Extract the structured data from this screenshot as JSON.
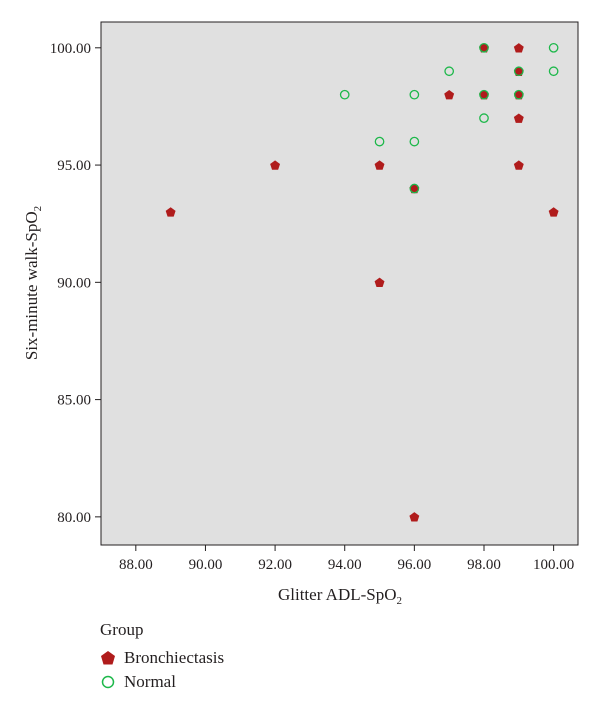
{
  "chart_data": {
    "type": "scatter",
    "xlabel": "Glitter ADL-SpO",
    "xlabel_sub": "2",
    "ylabel": "Six-minute walk-SpO",
    "ylabel_sub": "2",
    "xlim": [
      87.0,
      100.7
    ],
    "ylim": [
      78.8,
      101.1
    ],
    "x_ticks": [
      "88.00",
      "90.00",
      "92.00",
      "94.00",
      "96.00",
      "98.00",
      "100.00"
    ],
    "y_ticks": [
      "80.00",
      "85.00",
      "90.00",
      "95.00",
      "100.00"
    ],
    "grid": false,
    "legend": {
      "title": "Group",
      "position": "bottom-left"
    },
    "colors": {
      "plot_bg": "#e0e0e0",
      "Bronchiectasis": "#b01c1c",
      "Normal": "#1db84a"
    },
    "series": [
      {
        "name": "Bronchiectasis",
        "marker": "pentagon",
        "points": [
          [
            89,
            93
          ],
          [
            92,
            95
          ],
          [
            95,
            95
          ],
          [
            95,
            90
          ],
          [
            96,
            94
          ],
          [
            96,
            80
          ],
          [
            97,
            98
          ],
          [
            98,
            100
          ],
          [
            98,
            98
          ],
          [
            99,
            100
          ],
          [
            99,
            99
          ],
          [
            99,
            98
          ],
          [
            99,
            97
          ],
          [
            99,
            95
          ],
          [
            100,
            93
          ]
        ]
      },
      {
        "name": "Normal",
        "marker": "circle-open",
        "points": [
          [
            94,
            98
          ],
          [
            95,
            96
          ],
          [
            96,
            98
          ],
          [
            96,
            96
          ],
          [
            96,
            94
          ],
          [
            97,
            99
          ],
          [
            98,
            100
          ],
          [
            98,
            98
          ],
          [
            98,
            97
          ],
          [
            99,
            99
          ],
          [
            99,
            98
          ],
          [
            100,
            100
          ],
          [
            100,
            99
          ]
        ]
      }
    ]
  }
}
